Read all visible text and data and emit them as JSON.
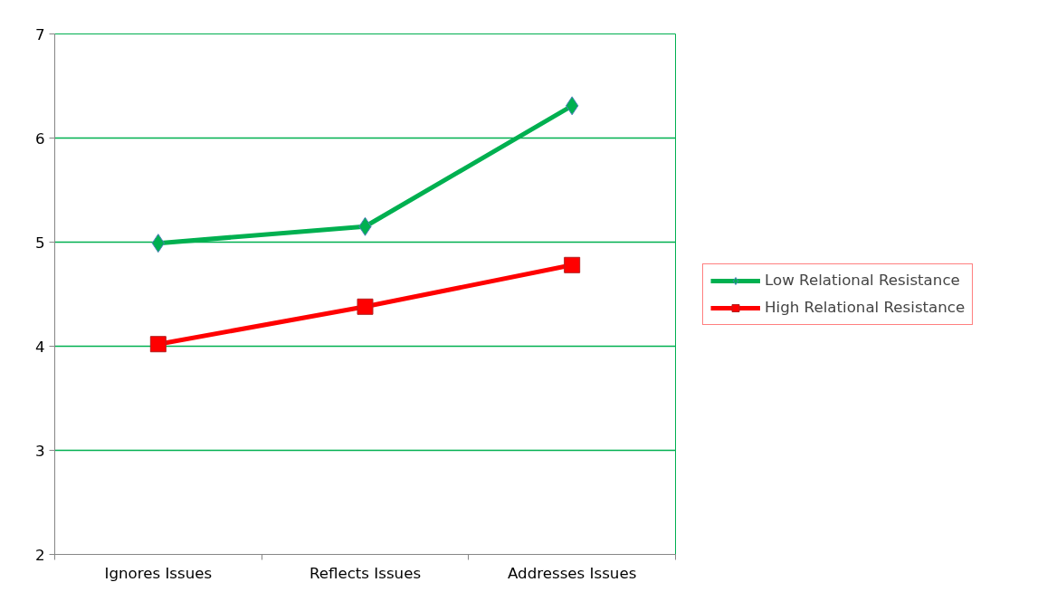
{
  "chart_data": {
    "type": "line",
    "categories": [
      "Ignores Issues",
      "Reflects Issues",
      "Addresses Issues"
    ],
    "series": [
      {
        "name": "Low Relational Resistance",
        "color": "#00b050",
        "marker": "diamond",
        "values": [
          4.99,
          5.15,
          6.31
        ]
      },
      {
        "name": "High Relational Resistance",
        "color": "#ff0000",
        "marker": "square",
        "values": [
          4.02,
          4.38,
          4.78
        ]
      }
    ],
    "ylim": [
      2,
      7
    ],
    "yticks": [
      2,
      3,
      4,
      5,
      6,
      7
    ],
    "grid": "y",
    "legend": "right",
    "line_style": "solid"
  }
}
